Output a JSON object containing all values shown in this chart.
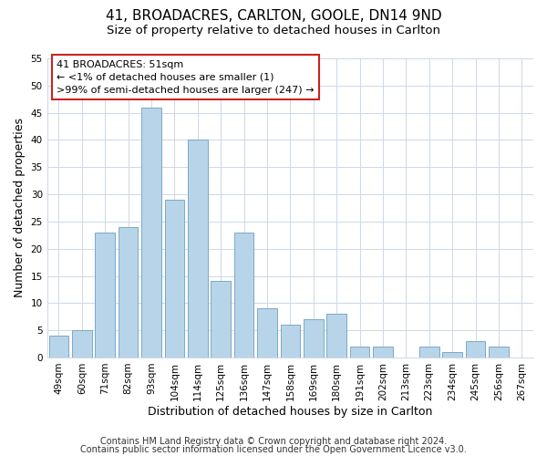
{
  "title": "41, BROADACRES, CARLTON, GOOLE, DN14 9ND",
  "subtitle": "Size of property relative to detached houses in Carlton",
  "xlabel": "Distribution of detached houses by size in Carlton",
  "ylabel": "Number of detached properties",
  "categories": [
    "49sqm",
    "60sqm",
    "71sqm",
    "82sqm",
    "93sqm",
    "104sqm",
    "114sqm",
    "125sqm",
    "136sqm",
    "147sqm",
    "158sqm",
    "169sqm",
    "180sqm",
    "191sqm",
    "202sqm",
    "213sqm",
    "223sqm",
    "234sqm",
    "245sqm",
    "256sqm",
    "267sqm"
  ],
  "values": [
    4,
    5,
    23,
    24,
    46,
    29,
    40,
    14,
    23,
    9,
    6,
    7,
    8,
    2,
    2,
    0,
    2,
    1,
    3,
    2,
    0
  ],
  "bar_color": "#b8d4e8",
  "bar_edge_color": "#7aaac8",
  "ylim": [
    0,
    55
  ],
  "yticks": [
    0,
    5,
    10,
    15,
    20,
    25,
    30,
    35,
    40,
    45,
    50,
    55
  ],
  "annotation_box_text_line1": "41 BROADACRES: 51sqm",
  "annotation_box_text_line2": "← <1% of detached houses are smaller (1)",
  "annotation_box_text_line3": ">99% of semi-detached houses are larger (247) →",
  "footer_line1": "Contains HM Land Registry data © Crown copyright and database right 2024.",
  "footer_line2": "Contains public sector information licensed under the Open Government Licence v3.0.",
  "background_color": "#ffffff",
  "grid_color": "#ccd8e8",
  "title_fontsize": 11,
  "subtitle_fontsize": 9.5,
  "axis_label_fontsize": 9,
  "tick_fontsize": 7.5,
  "footer_fontsize": 7
}
